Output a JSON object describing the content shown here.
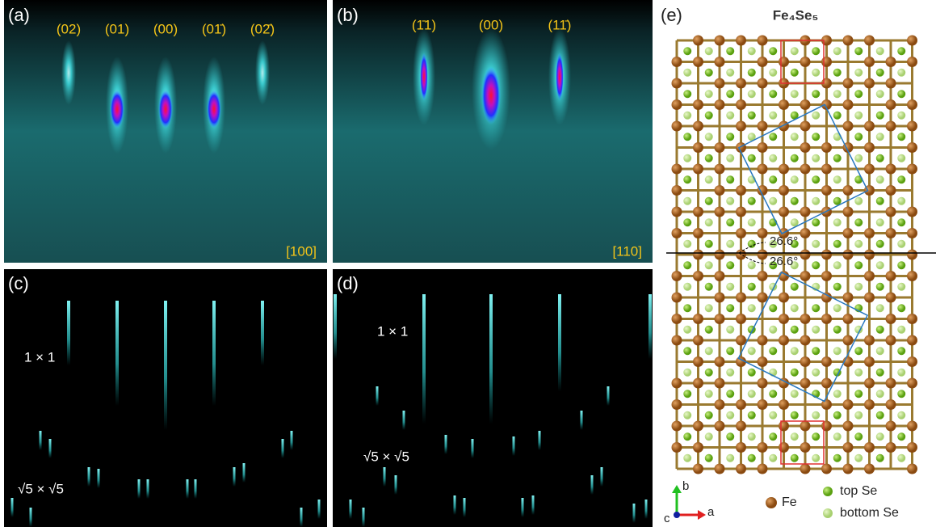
{
  "panels": [
    {
      "label": "(a)",
      "spots": [
        "(02)",
        "(01)",
        "(00)",
        "(01̄)",
        "(02̄)"
      ],
      "azimuth": "[100]"
    },
    {
      "label": "(b)",
      "spots": [
        "(1̄1)",
        "(00)",
        "(11̄)"
      ],
      "azimuth": "[110]"
    },
    {
      "label": "(c)",
      "reconstructions": [
        "1 × 1",
        "√5 × √5"
      ]
    },
    {
      "label": "(d)",
      "reconstructions": [
        "1 × 1",
        "√5 × √5"
      ]
    },
    {
      "label": "(e)",
      "title": "Fe₄Se₅",
      "angles": [
        "26.6°",
        "26.6°"
      ],
      "axes": [
        "b",
        "c",
        "a"
      ],
      "legend": [
        "Fe",
        "top Se",
        "bottom Se"
      ]
    }
  ]
}
